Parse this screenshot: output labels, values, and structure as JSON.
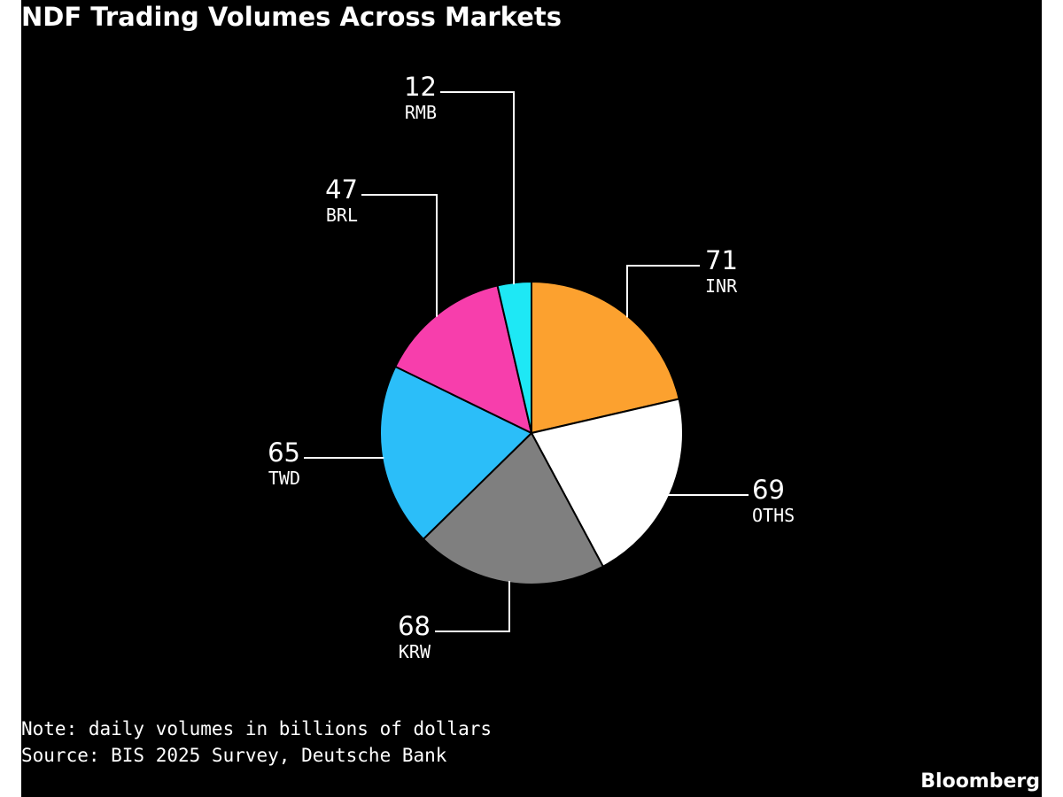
{
  "chart_data": {
    "type": "pie",
    "title": "NDF Trading Volumes Across Markets",
    "categories": [
      "INR",
      "OTHS",
      "KRW",
      "TWD",
      "BRL",
      "RMB"
    ],
    "values": [
      71,
      69,
      68,
      65,
      47,
      12
    ],
    "colors": [
      "#FCA12F",
      "#FFFFFF",
      "#7F7F7F",
      "#2BBEF9",
      "#F73EAC",
      "#1EE8F5"
    ],
    "start_angle": "12 o'clock",
    "direction": "clockwise",
    "data_labels": "value above category name, connected by leader lines",
    "note": "Note: daily volumes in billions of dollars",
    "source": "Source: BIS 2025 Survey, Deutsche Bank"
  },
  "footer": {
    "brand": "Bloomberg"
  },
  "theme": {
    "background": "#000000",
    "text": "#FFFFFF",
    "slice_border": "#000000"
  }
}
